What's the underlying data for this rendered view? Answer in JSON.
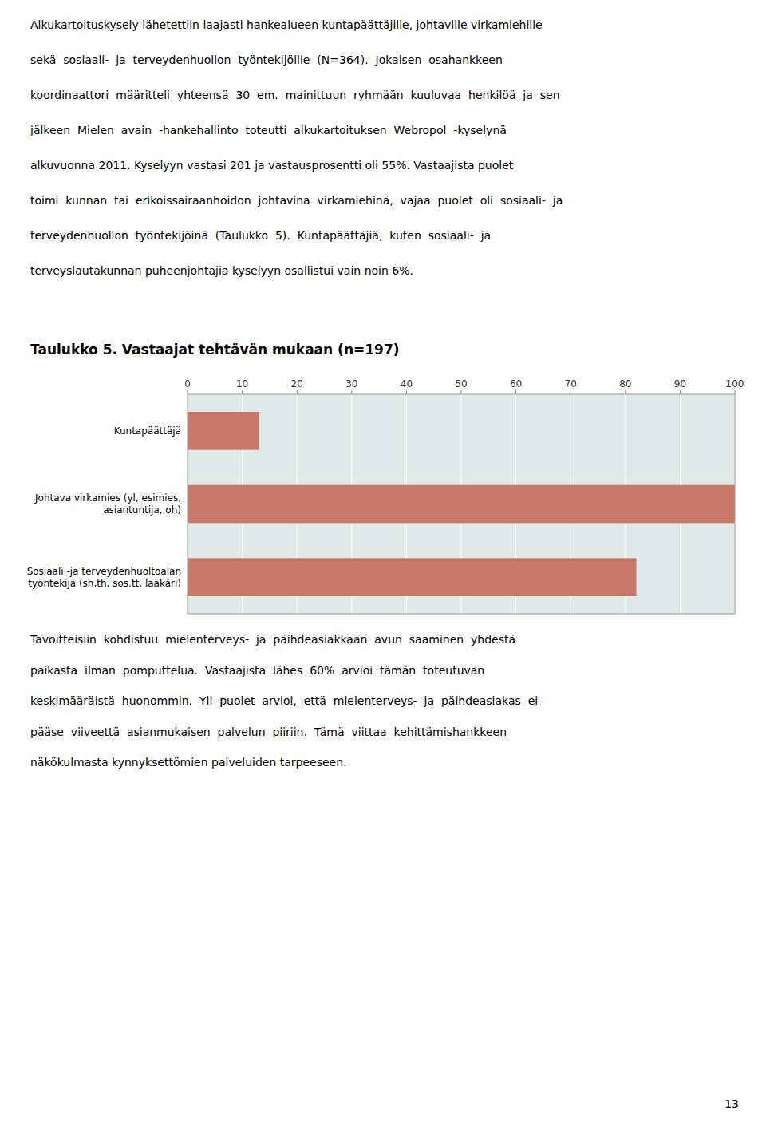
{
  "top_text": [
    "Alkukartoituskysely lähetettiin laajasti hankealueen kuntapäättäjille, johtaville virkamiehille",
    "sekä  sosiaali-  ja  terveydenhuollon  työntekijöille  (N=364).  Jokaisen  osahankkeen",
    "koordinaattori  määritteli  yhteensä  30  em.  mainittuun  ryhmään  kuuluvaa  henkilöä  ja  sen",
    "jälkeen  Mielen  avain  -hankehallinto  toteutti  alkukartoituksen  Webropol  -kyselynä",
    "alkuvuonna 2011. Kyselyyn vastasi 201 ja vastausprosentti oli 55%. Vastaajista puolet",
    "toimi  kunnan  tai  erikoissairaanhoidon  johtavina  virkamiehinä,  vajaa  puolet  oli  sosiaali-  ja",
    "terveydenhuollon  työntekijöinä  (Taulukko  5).  Kuntapäättäjiä,  kuten  sosiaali-  ja",
    "terveyslautakunnan puheenjohtajia kyselyyn osallistui vain noin 6%."
  ],
  "chart_data": {
    "type": "bar",
    "orientation": "horizontal",
    "title": "Taulukko 5. Vastaajat tehtävän mukaan (n=197)",
    "categories": [
      "Kuntapäättäjä",
      "Johtava virkamies (yl, esimies,\nasiantuntija, oh)",
      "Sosiaali -ja terveydenhuoltoalan\ntyöntekijä (sh,th, sos.tt, lääkäri)"
    ],
    "values": [
      13,
      100,
      82
    ],
    "color": "#c8796a",
    "xlim": [
      0,
      100
    ],
    "xticks": [
      0,
      10,
      20,
      30,
      40,
      50,
      60,
      70,
      80,
      90,
      100
    ],
    "grid": true
  },
  "footer_text": [
    "Tavoitteisiin  kohdistuu  mielenterveys-  ja  päihdeasiakkaan  avun  saaminen  yhdestä",
    "paikasta  ilman  pomputtelua.  Vastaajista  lähes  60%  arvioi  tämän  toteutuvan",
    "keskimääräistä  huonommin.  Yli  puolet  arvioi,  että  mielenterveys-  ja  päihdeasiakas  ei",
    "pääse  viiveettä  asianmukaisen  palvelun  piiriin.  Tämä  viittaa  kehittämishankkeen",
    "näkökulmasta kynnyksettömien palveluiden tarpeeseen."
  ],
  "page_number": "13"
}
